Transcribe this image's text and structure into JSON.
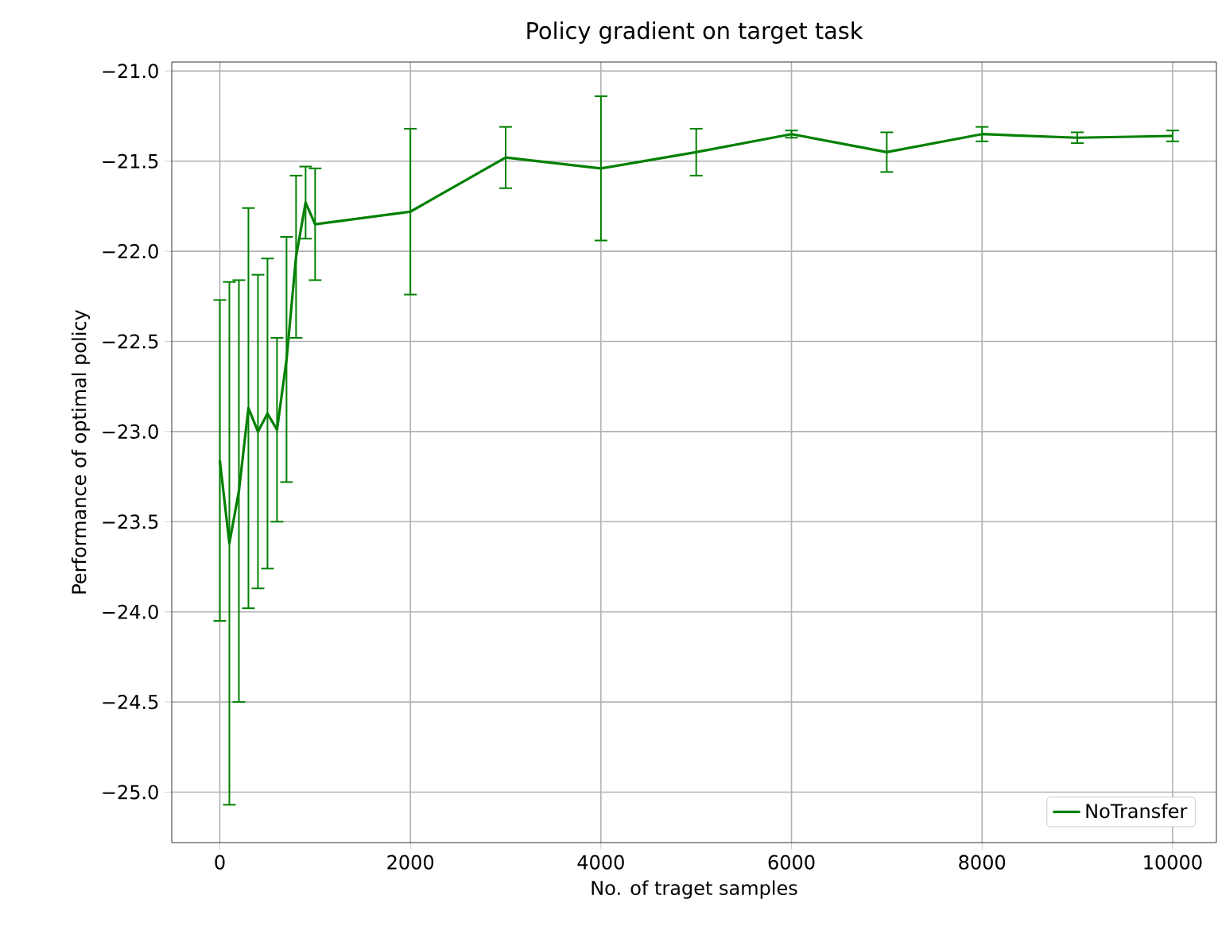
{
  "chart_data": {
    "type": "line",
    "title": "Policy gradient on target task",
    "xlabel": "No. of traget samples",
    "ylabel": "Performance of optimal policy",
    "x": [
      0,
      100,
      200,
      300,
      400,
      500,
      600,
      700,
      800,
      900,
      1000,
      2000,
      3000,
      4000,
      5000,
      6000,
      7000,
      8000,
      9000,
      10000
    ],
    "series": [
      {
        "name": "NoTransfer",
        "color": "#008000",
        "values": [
          -23.16,
          -23.62,
          -23.33,
          -22.87,
          -23.0,
          -22.9,
          -22.99,
          -22.6,
          -22.03,
          -21.73,
          -21.85,
          -21.78,
          -21.48,
          -21.54,
          -21.45,
          -21.35,
          -21.45,
          -21.35,
          -21.37,
          -21.36
        ],
        "errors": [
          0.89,
          1.45,
          1.17,
          1.11,
          0.87,
          0.86,
          0.51,
          0.68,
          0.45,
          0.2,
          0.31,
          0.46,
          0.17,
          0.4,
          0.13,
          0.02,
          0.11,
          0.04,
          0.03,
          0.03
        ]
      }
    ],
    "xlim": [
      -505,
      10460
    ],
    "ylim": [
      -25.28,
      -20.95
    ],
    "xticks": [
      0,
      2000,
      4000,
      6000,
      8000,
      10000
    ],
    "yticks": [
      {
        "value": -25.0,
        "label": "−25.0"
      },
      {
        "value": -24.5,
        "label": "−24.5"
      },
      {
        "value": -24.0,
        "label": "−24.0"
      },
      {
        "value": -23.5,
        "label": "−23.5"
      },
      {
        "value": -23.0,
        "label": "−23.0"
      },
      {
        "value": -22.5,
        "label": "−22.5"
      },
      {
        "value": -22.0,
        "label": "−22.0"
      },
      {
        "value": -21.5,
        "label": "−21.5"
      },
      {
        "value": -21.0,
        "label": "−21.0"
      }
    ],
    "grid": true,
    "legend": "bottom right",
    "marker": "none",
    "line_style": "solid"
  }
}
